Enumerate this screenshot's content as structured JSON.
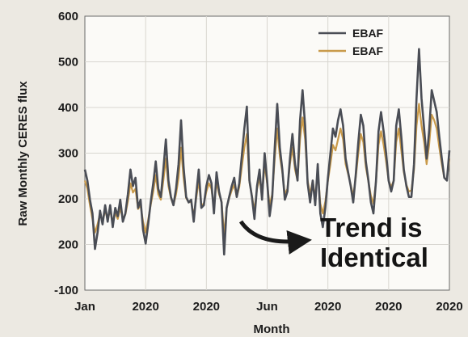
{
  "chart_data": {
    "type": "line",
    "ylabel": "Raw Monthly CERES flux",
    "xlabel": "Month",
    "y_ticks": [
      "-100",
      "200",
      "200",
      "300",
      "400",
      "500",
      "600"
    ],
    "x_ticks": [
      "Jan",
      "2020",
      "2020",
      "Jun",
      "2020",
      "2020",
      "2020"
    ],
    "grid": true,
    "legend_placement": "top-right",
    "annotation": [
      "Trend is",
      "Identical"
    ],
    "series": [
      {
        "name": "EBAF",
        "color": "#4a4d55",
        "values": [
          320,
          300,
          265,
          240,
          175,
          205,
          245,
          220,
          255,
          225,
          255,
          215,
          250,
          235,
          265,
          225,
          240,
          275,
          320,
          290,
          305,
          250,
          265,
          210,
          185,
          220,
          260,
          295,
          335,
          285,
          270,
          320,
          375,
          300,
          270,
          255,
          285,
          330,
          410,
          325,
          270,
          260,
          265,
          225,
          275,
          320,
          250,
          255,
          290,
          310,
          295,
          240,
          315,
          280,
          260,
          165,
          250,
          270,
          290,
          305,
          270,
          295,
          345,
          395,
          435,
          300,
          270,
          230,
          290,
          320,
          265,
          350,
          300,
          235,
          270,
          360,
          440,
          360,
          320,
          265,
          280,
          340,
          385,
          330,
          300,
          410,
          465,
          400,
          295,
          260,
          300,
          255,
          330,
          240,
          215,
          250,
          305,
          350,
          395,
          380,
          410,
          430,
          400,
          340,
          315,
          290,
          260,
          310,
          370,
          420,
          400,
          335,
          300,
          260,
          240,
          300,
          390,
          425,
          390,
          350,
          300,
          280,
          300,
          400,
          430,
          380,
          320,
          290,
          270,
          270,
          330,
          450,
          540,
          450,
          395,
          340,
          390,
          465,
          445,
          425,
          380,
          340,
          305,
          300,
          355
        ]
      },
      {
        "name": "EBAF",
        "color": "#c99a4a",
        "values": [
          300,
          285,
          255,
          230,
          205,
          220,
          240,
          225,
          245,
          230,
          245,
          225,
          240,
          230,
          250,
          230,
          238,
          262,
          295,
          278,
          285,
          248,
          255,
          225,
          205,
          228,
          255,
          280,
          310,
          275,
          265,
          300,
          340,
          290,
          268,
          255,
          275,
          305,
          360,
          305,
          268,
          260,
          262,
          235,
          268,
          300,
          255,
          258,
          280,
          295,
          285,
          250,
          298,
          275,
          262,
          200,
          250,
          268,
          282,
          292,
          270,
          288,
          325,
          360,
          385,
          298,
          272,
          245,
          285,
          305,
          270,
          330,
          295,
          255,
          275,
          340,
          395,
          345,
          315,
          275,
          285,
          330,
          360,
          320,
          300,
          375,
          415,
          375,
          300,
          275,
          300,
          268,
          318,
          258,
          240,
          262,
          300,
          330,
          365,
          355,
          375,
          395,
          375,
          330,
          312,
          292,
          272,
          305,
          350,
          385,
          370,
          325,
          298,
          272,
          258,
          298,
          365,
          390,
          365,
          335,
          300,
          288,
          300,
          370,
          395,
          355,
          315,
          292,
          280,
          282,
          320,
          400,
          440,
          400,
          370,
          330,
          365,
          420,
          410,
          395,
          360,
          330,
          305,
          302,
          340
        ]
      }
    ]
  }
}
